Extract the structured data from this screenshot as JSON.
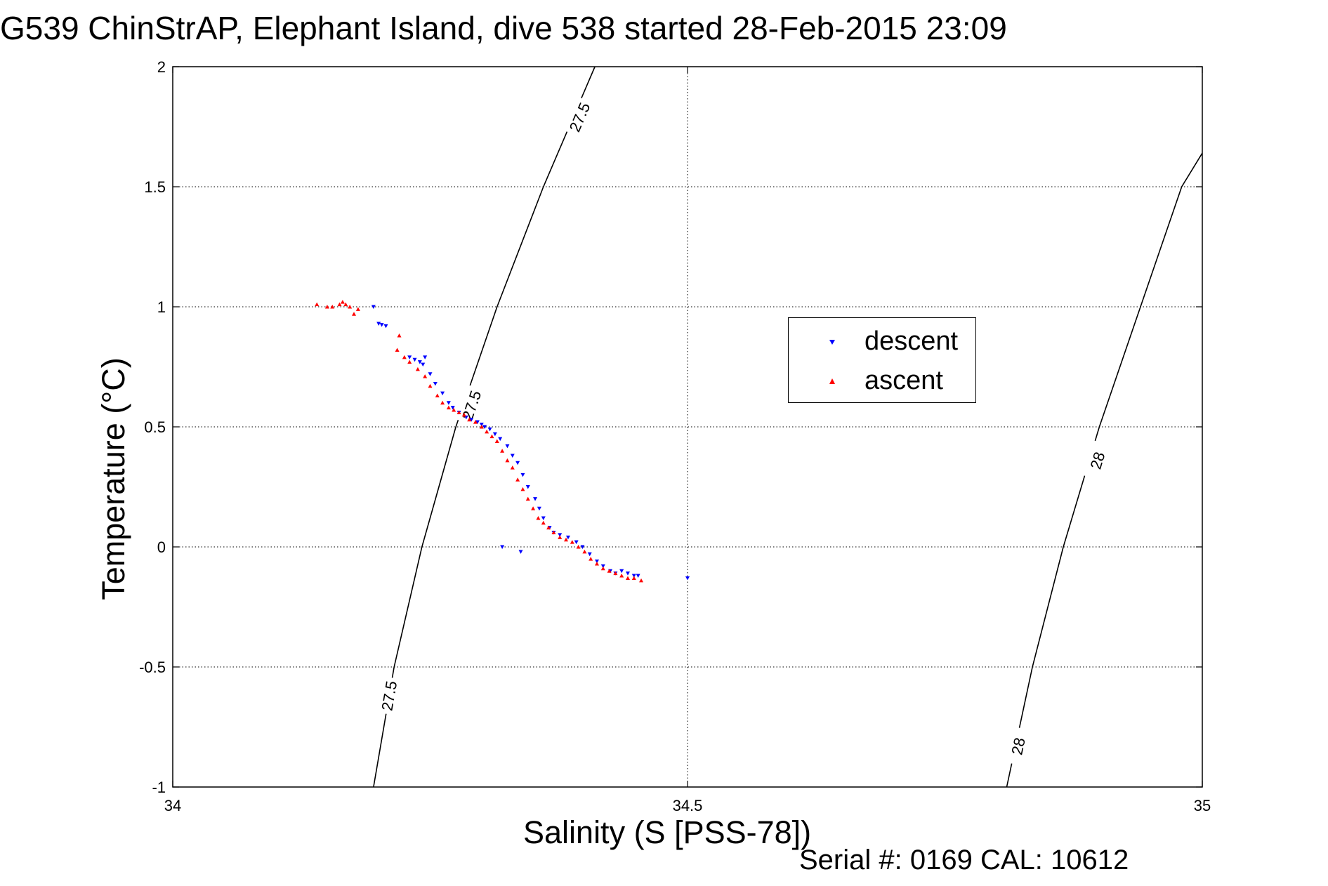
{
  "title": "G539 ChinStrAP, Elephant Island, dive 538 started 28-Feb-2015 23:09",
  "serial": "Serial #: 0169 CAL: 10612",
  "chart_data": {
    "type": "scatter",
    "title": "G539 ChinStrAP, Elephant Island, dive 538 started 28-Feb-2015 23:09",
    "xlabel": "Salinity (S [PSS-78])",
    "ylabel": "Temperature (°C)",
    "xlim": [
      34,
      35
    ],
    "ylim": [
      -1,
      2
    ],
    "xticks": [
      34,
      34.5,
      35
    ],
    "xtick_labels": [
      "34",
      "34.5",
      "35"
    ],
    "yticks": [
      -1,
      -0.5,
      0,
      0.5,
      1,
      1.5,
      2
    ],
    "ytick_labels": [
      "-1",
      "-0.5",
      "0",
      "0.5",
      "1",
      "1.5",
      "2"
    ],
    "grid": true,
    "legend_position": "center-right",
    "density_contours": [
      {
        "label": "27.5",
        "x": [
          34.195,
          34.215,
          34.242,
          34.275,
          34.315,
          34.36,
          34.41
        ],
        "y": [
          -1.0,
          -0.5,
          0.0,
          0.5,
          1.0,
          1.5,
          2.0
        ],
        "labels_at": [
          {
            "text": "27.5",
            "x": 34.21,
            "y": -0.62
          },
          {
            "text": "27.5",
            "x": 34.29,
            "y": 0.59
          },
          {
            "text": "27.5",
            "x": 34.395,
            "y": 1.79
          }
        ]
      },
      {
        "label": "28",
        "x": [
          34.81,
          34.835,
          34.865,
          34.9,
          34.94,
          34.98,
          35.0
        ],
        "y": [
          -1.0,
          -0.5,
          0.0,
          0.5,
          1.0,
          1.5,
          1.64
        ],
        "labels_at": [
          {
            "text": "28",
            "x": 34.821,
            "y": -0.83
          },
          {
            "text": "28",
            "x": 34.898,
            "y": 0.36
          }
        ]
      }
    ],
    "series": [
      {
        "name": "descent",
        "color": "#0000ff",
        "marker": "triangle-down",
        "x": [
          34.195,
          34.2,
          34.203,
          34.207,
          34.23,
          34.235,
          34.24,
          34.243,
          34.245,
          34.25,
          34.255,
          34.262,
          34.268,
          34.272,
          34.278,
          34.285,
          34.29,
          34.296,
          34.3,
          34.303,
          34.308,
          34.313,
          34.318,
          34.325,
          34.33,
          34.335,
          34.34,
          34.345,
          34.352,
          34.356,
          34.36,
          34.366,
          34.37,
          34.376,
          34.384,
          34.392,
          34.398,
          34.405,
          34.412,
          34.418,
          34.425,
          34.43,
          34.436,
          34.442,
          34.448,
          34.452,
          34.5,
          34.32,
          34.338
        ],
        "y": [
          1.0,
          0.93,
          0.925,
          0.92,
          0.79,
          0.78,
          0.77,
          0.76,
          0.79,
          0.72,
          0.68,
          0.64,
          0.6,
          0.58,
          0.56,
          0.54,
          0.53,
          0.52,
          0.51,
          0.5,
          0.49,
          0.47,
          0.45,
          0.42,
          0.38,
          0.35,
          0.3,
          0.25,
          0.2,
          0.16,
          0.12,
          0.08,
          0.06,
          0.05,
          0.04,
          0.02,
          0.0,
          -0.03,
          -0.06,
          -0.08,
          -0.1,
          -0.11,
          -0.1,
          -0.11,
          -0.12,
          -0.12,
          -0.13,
          0.0,
          -0.02
        ]
      },
      {
        "name": "ascent",
        "color": "#ff0000",
        "marker": "triangle-up",
        "x": [
          34.14,
          34.15,
          34.155,
          34.162,
          34.165,
          34.168,
          34.172,
          34.18,
          34.218,
          34.225,
          34.23,
          34.238,
          34.245,
          34.25,
          34.257,
          34.262,
          34.268,
          34.273,
          34.278,
          34.283,
          34.288,
          34.294,
          34.3,
          34.305,
          34.31,
          34.315,
          34.32,
          34.325,
          34.33,
          34.335,
          34.34,
          34.345,
          34.35,
          34.355,
          34.36,
          34.365,
          34.37,
          34.376,
          34.382,
          34.388,
          34.394,
          34.4,
          34.406,
          34.412,
          34.418,
          34.424,
          34.43,
          34.436,
          34.442,
          34.448,
          34.455,
          34.176,
          34.22
        ],
        "y": [
          1.01,
          1.0,
          1.0,
          1.01,
          1.02,
          1.01,
          1.0,
          0.99,
          0.82,
          0.79,
          0.77,
          0.74,
          0.71,
          0.67,
          0.63,
          0.6,
          0.58,
          0.57,
          0.56,
          0.55,
          0.53,
          0.52,
          0.5,
          0.48,
          0.46,
          0.44,
          0.4,
          0.36,
          0.33,
          0.28,
          0.24,
          0.2,
          0.16,
          0.12,
          0.1,
          0.08,
          0.06,
          0.04,
          0.03,
          0.02,
          0.0,
          -0.02,
          -0.05,
          -0.07,
          -0.09,
          -0.1,
          -0.11,
          -0.12,
          -0.13,
          -0.13,
          -0.14,
          0.97,
          0.88
        ]
      }
    ]
  }
}
